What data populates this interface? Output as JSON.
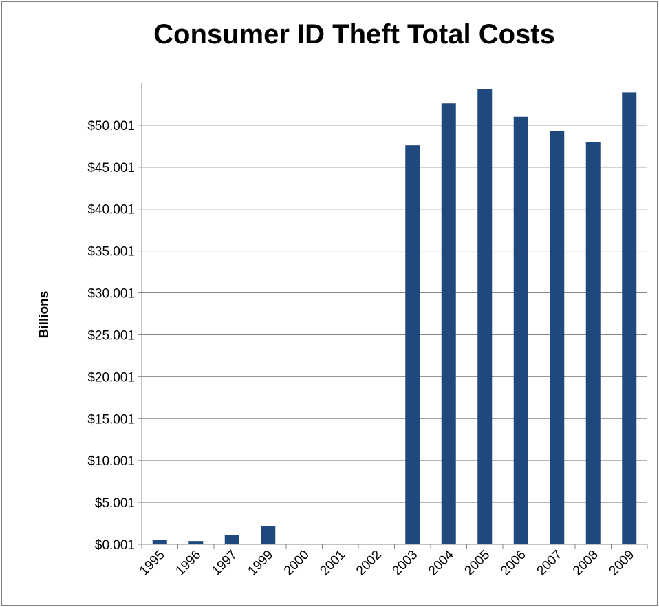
{
  "chart_data": {
    "type": "bar",
    "title": "Consumer ID Theft Total Costs",
    "xlabel": "",
    "ylabel": "Billions",
    "categories": [
      "1995",
      "1996",
      "1997",
      "1999",
      "2000",
      "2001",
      "2002",
      "2003",
      "2004",
      "2005",
      "2006",
      "2007",
      "2008",
      "2009"
    ],
    "values": [
      0.5,
      0.4,
      1.1,
      2.2,
      0,
      0,
      0,
      47.6,
      52.6,
      54.3,
      51.0,
      49.3,
      48.0,
      53.9
    ],
    "ylim": [
      0.001,
      55.001
    ],
    "ytick_values": [
      0.001,
      5.001,
      10.001,
      15.001,
      20.001,
      25.001,
      30.001,
      35.001,
      40.001,
      45.001,
      50.001
    ],
    "ytick_labels": [
      "$0.001",
      "$5.001",
      "$10.001",
      "$15.001",
      "$20.001",
      "$25.001",
      "$30.001",
      "$35.001",
      "$40.001",
      "$45.001",
      "$50.001"
    ],
    "bar_color": "#1f497d",
    "grid": true,
    "legend": "none"
  }
}
